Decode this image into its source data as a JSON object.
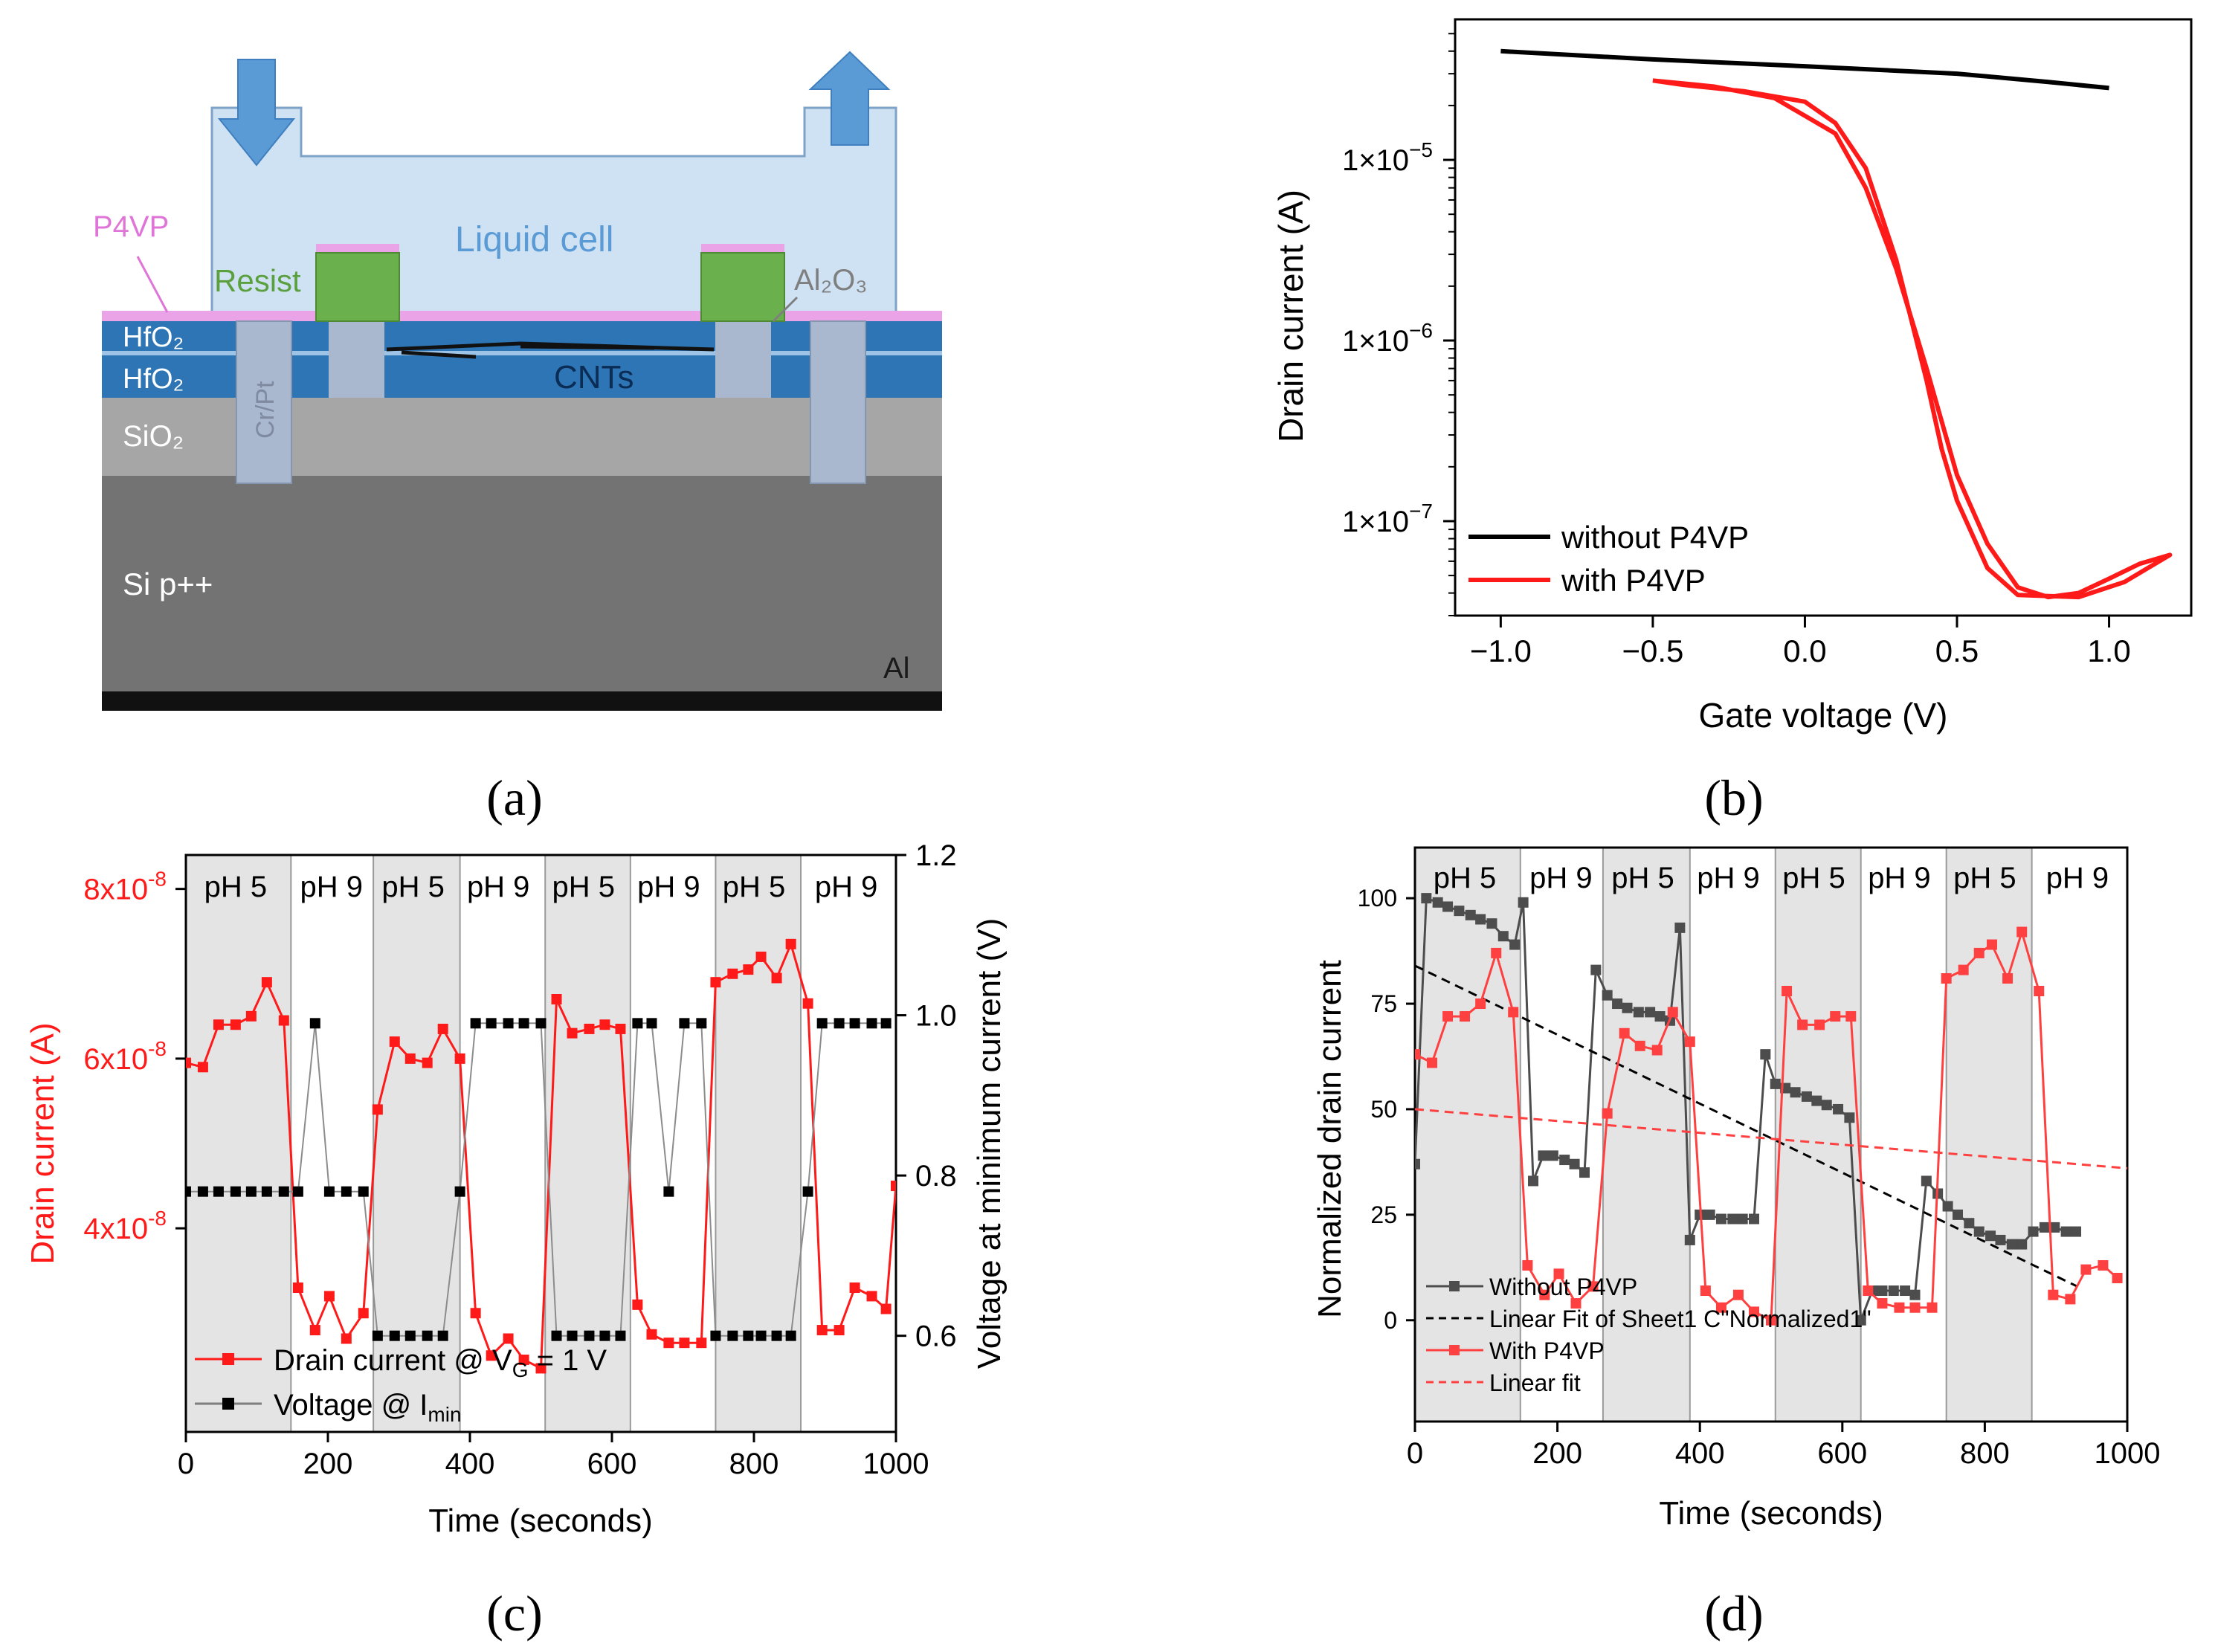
{
  "panel_a": {
    "caption": "(a)",
    "labels": {
      "p4vp": "P4VP",
      "liquid_cell": "Liquid cell",
      "resist": "Resist",
      "al2o3": "Al₂O₃",
      "hfo2_top": "HfO₂",
      "hfo2_bottom": "HfO₂",
      "crpt": "Cr/Pt",
      "cnts": "CNTs",
      "sio2": "SiO₂",
      "si": "Si p++",
      "al": "Al"
    },
    "colors": {
      "liquid_cell": "#cfe2f3",
      "arrow": "#5b9bd5",
      "p4vp": "#e680e0",
      "resist": "#6ab04c",
      "hfo2_dark": "#2e75b6",
      "hfo2_light": "#9dc3e6",
      "sio2": "#a6a6a6",
      "si": "#737373",
      "al": "#111111",
      "contact": "#a9b8cf"
    }
  },
  "captions": {
    "b": "(b)",
    "c": "(c)",
    "d": "(d)"
  },
  "chart_data": [
    {
      "panel": "b",
      "type": "line",
      "xlabel": "Gate voltage (V)",
      "ylabel": "Drain current (A)",
      "xlim": [
        -1.15,
        1.27
      ],
      "ylim": [
        3e-08,
        6e-05
      ],
      "yscale": "log",
      "xticks": [
        -1.0,
        -0.5,
        0.0,
        0.5,
        1.0
      ],
      "xtick_labels": [
        "−1.0",
        "−0.5",
        "0.0",
        "0.5",
        "1.0"
      ],
      "yticks": [
        1e-07,
        1e-06,
        1e-05
      ],
      "ytick_labels": [
        "1×10",
        "1×10",
        "1×10"
      ],
      "ytick_exponents": [
        "−7",
        "−6",
        "−5"
      ],
      "legend_position": "bottom-left",
      "series": [
        {
          "name": "without P4VP",
          "color": "#000000",
          "points": [
            [
              -1.0,
              4e-05
            ],
            [
              -0.5,
              3.6e-05
            ],
            [
              0.0,
              3.3e-05
            ],
            [
              0.5,
              3e-05
            ],
            [
              0.8,
              2.7e-05
            ],
            [
              1.0,
              2.5e-05
            ]
          ]
        },
        {
          "name": "with P4VP",
          "color": "#ff1a1a",
          "points": [
            [
              -0.5,
              2.75e-05
            ],
            [
              -0.3,
              2.55e-05
            ],
            [
              -0.1,
              2.2e-05
            ],
            [
              0.1,
              1.4e-05
            ],
            [
              0.2,
              7e-06
            ],
            [
              0.3,
              2.5e-06
            ],
            [
              0.4,
              7e-07
            ],
            [
              0.5,
              1.8e-07
            ],
            [
              0.6,
              7.5e-08
            ],
            [
              0.7,
              4.3e-08
            ],
            [
              0.8,
              3.8e-08
            ],
            [
              0.9,
              4e-08
            ],
            [
              1.0,
              4.8e-08
            ],
            [
              1.1,
              5.8e-08
            ],
            [
              1.2,
              6.5e-08
            ],
            [
              1.05,
              4.6e-08
            ],
            [
              0.9,
              3.8e-08
            ],
            [
              0.7,
              3.9e-08
            ],
            [
              0.6,
              5.5e-08
            ],
            [
              0.5,
              1.3e-07
            ],
            [
              0.45,
              2.5e-07
            ],
            [
              0.4,
              6e-07
            ],
            [
              0.3,
              2.8e-06
            ],
            [
              0.2,
              9e-06
            ],
            [
              0.1,
              1.6e-05
            ],
            [
              0.0,
              2.1e-05
            ],
            [
              -0.2,
              2.4e-05
            ],
            [
              -0.4,
              2.6e-05
            ],
            [
              -0.5,
              2.75e-05
            ]
          ]
        }
      ]
    },
    {
      "panel": "c",
      "type": "line",
      "xlabel": "Time (seconds)",
      "ylabel": "Drain current (A)",
      "y2label": "Voltage at minimum current (V)",
      "xlim": [
        0,
        1000
      ],
      "ylim": [
        1.6e-08,
        8.4e-08
      ],
      "y2lim": [
        0.48,
        1.2
      ],
      "xticks": [
        0,
        200,
        400,
        600,
        800,
        1000
      ],
      "yticks": [
        4e-08,
        6e-08,
        8e-08
      ],
      "ytick_labels": [
        "4x10",
        "6x10",
        "8x10"
      ],
      "ytick_exponent": "-8",
      "y2ticks": [
        0.6,
        0.8,
        1.0,
        1.2
      ],
      "y2tick_labels": [
        "0.6",
        "0.8",
        "1.0",
        "1.2"
      ],
      "shaded_regions": [
        [
          0,
          148
        ],
        [
          264,
          386
        ],
        [
          506,
          626
        ],
        [
          746,
          866
        ]
      ],
      "region_labels": [
        "pH 5",
        "pH 9",
        "pH 5",
        "pH 9",
        "pH 5",
        "pH 9",
        "pH 5",
        "pH 9"
      ],
      "region_label_x": [
        70,
        205,
        320,
        440,
        560,
        680,
        800,
        930
      ],
      "legend_position": "bottom-left",
      "legend": [
        {
          "prefix": "Drain current @ V",
          "sub": "G",
          "suffix": " = 1 V"
        },
        {
          "prefix": "Voltage @ I",
          "sub": "min",
          "suffix": ""
        }
      ],
      "series": [
        {
          "name": "Drain current @ VG = 1 V",
          "axis": "left",
          "color": "#ff1a1a",
          "x": [
            0,
            24,
            46,
            70,
            92,
            114,
            138,
            158,
            182,
            202,
            226,
            250,
            270,
            294,
            316,
            340,
            362,
            386,
            408,
            430,
            454,
            476,
            500,
            522,
            544,
            568,
            590,
            612,
            636,
            656,
            680,
            702,
            726,
            746,
            770,
            792,
            810,
            832,
            852,
            876,
            896,
            920,
            942,
            966,
            986,
            1000
          ],
          "y": [
            5.95e-08,
            5.9e-08,
            6.4e-08,
            6.4e-08,
            6.5e-08,
            6.9e-08,
            6.45e-08,
            3.3e-08,
            2.8e-08,
            3.2e-08,
            2.7e-08,
            3e-08,
            5.4e-08,
            6.2e-08,
            6e-08,
            5.95e-08,
            6.35e-08,
            6e-08,
            3e-08,
            2.5e-08,
            2.7e-08,
            2.45e-08,
            2.35e-08,
            6.7e-08,
            6.3e-08,
            6.35e-08,
            6.4e-08,
            6.35e-08,
            3.1e-08,
            2.75e-08,
            2.65e-08,
            2.65e-08,
            2.65e-08,
            6.9e-08,
            7e-08,
            7.05e-08,
            7.2e-08,
            6.95e-08,
            7.35e-08,
            6.65e-08,
            2.8e-08,
            2.8e-08,
            3.3e-08,
            3.2e-08,
            3.05e-08,
            4.5e-08
          ]
        },
        {
          "name": "Voltage @ Imin",
          "axis": "right",
          "color": "#000000",
          "x": [
            0,
            24,
            46,
            70,
            92,
            114,
            138,
            158,
            182,
            202,
            226,
            250,
            270,
            294,
            316,
            340,
            362,
            386,
            408,
            430,
            454,
            476,
            500,
            522,
            544,
            568,
            590,
            612,
            636,
            656,
            680,
            702,
            726,
            746,
            770,
            792,
            810,
            832,
            852,
            876,
            896,
            920,
            942,
            966,
            986
          ],
          "y": [
            0.78,
            0.78,
            0.78,
            0.78,
            0.78,
            0.78,
            0.78,
            0.78,
            0.99,
            0.78,
            0.78,
            0.78,
            0.6,
            0.6,
            0.6,
            0.6,
            0.6,
            0.78,
            0.99,
            0.99,
            0.99,
            0.99,
            0.99,
            0.6,
            0.6,
            0.6,
            0.6,
            0.6,
            0.99,
            0.99,
            0.78,
            0.99,
            0.99,
            0.6,
            0.6,
            0.6,
            0.6,
            0.6,
            0.6,
            0.78,
            0.99,
            0.99,
            0.99,
            0.99,
            0.99
          ]
        }
      ]
    },
    {
      "panel": "d",
      "type": "line",
      "xlabel": "Time (seconds)",
      "ylabel": "Normalized drain current",
      "xlim": [
        0,
        1000
      ],
      "ylim": [
        -24,
        112
      ],
      "xticks": [
        0,
        200,
        400,
        600,
        800,
        1000
      ],
      "yticks": [
        0,
        25,
        50,
        75,
        100
      ],
      "shaded_regions": [
        [
          0,
          148
        ],
        [
          264,
          386
        ],
        [
          506,
          626
        ],
        [
          746,
          866
        ]
      ],
      "region_labels": [
        "pH 5",
        "pH 9",
        "pH 5",
        "pH 9",
        "pH 5",
        "pH 9",
        "pH 5",
        "pH 9"
      ],
      "region_label_x": [
        70,
        205,
        320,
        440,
        560,
        680,
        800,
        930
      ],
      "legend_position": "bottom-left",
      "series": [
        {
          "name": "Without P4VP",
          "color": "#4d4d4d",
          "style": "solid-square",
          "x": [
            0,
            16,
            32,
            46,
            62,
            78,
            92,
            108,
            124,
            140,
            152,
            166,
            180,
            194,
            210,
            224,
            238,
            254,
            270,
            284,
            298,
            314,
            330,
            344,
            358,
            372,
            386,
            400,
            414,
            430,
            446,
            460,
            476,
            492,
            506,
            520,
            534,
            550,
            564,
            578,
            594,
            610,
            626,
            642,
            656,
            672,
            688,
            702,
            718,
            734,
            748,
            762,
            778,
            792,
            808,
            822,
            838,
            852,
            868,
            884,
            898,
            914,
            928
          ],
          "y": [
            37,
            100,
            99,
            98,
            97,
            96,
            95,
            94,
            91,
            89,
            99,
            33,
            39,
            39,
            38,
            37,
            35,
            83,
            77,
            75,
            74,
            73,
            73,
            72,
            71,
            93,
            19,
            25,
            25,
            24,
            24,
            24,
            24,
            63,
            56,
            55,
            54,
            53,
            52,
            51,
            50,
            48,
            0,
            7,
            7,
            7,
            7,
            6,
            33,
            30,
            27,
            25,
            23,
            21,
            20,
            19,
            18,
            18,
            21,
            22,
            22,
            21,
            21
          ]
        },
        {
          "name": "Linear Fit of Sheet1 C\"Normalized1\"",
          "color": "#000000",
          "style": "dashed",
          "x": [
            0,
            930
          ],
          "y": [
            84,
            8
          ]
        },
        {
          "name": "With P4VP",
          "color": "#ff4040",
          "style": "solid-square",
          "x": [
            0,
            24,
            46,
            70,
            92,
            114,
            138,
            158,
            182,
            202,
            226,
            250,
            270,
            294,
            316,
            340,
            362,
            386,
            408,
            430,
            454,
            476,
            500,
            522,
            544,
            568,
            590,
            612,
            636,
            656,
            680,
            702,
            726,
            746,
            770,
            792,
            810,
            832,
            852,
            876,
            896,
            920,
            942,
            966,
            986
          ],
          "y": [
            63,
            61,
            72,
            72,
            75,
            87,
            73,
            13,
            6,
            11,
            4,
            8,
            49,
            68,
            65,
            64,
            73,
            66,
            7,
            3,
            6,
            2,
            0,
            78,
            70,
            70,
            72,
            72,
            7,
            4,
            3,
            3,
            3,
            81,
            83,
            87,
            89,
            81,
            92,
            78,
            6,
            5,
            12,
            13,
            10
          ]
        },
        {
          "name": "Linear fit",
          "color": "#ff4040",
          "style": "dashed",
          "x": [
            0,
            1000
          ],
          "y": [
            50,
            36
          ]
        }
      ]
    }
  ]
}
